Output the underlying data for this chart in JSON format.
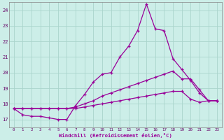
{
  "xlabel": "Windchill (Refroidissement éolien,°C)",
  "background_color": "#cceee8",
  "grid_color": "#aad4cc",
  "line_color": "#990099",
  "x_ticks": [
    0,
    1,
    2,
    3,
    4,
    5,
    6,
    7,
    8,
    9,
    10,
    11,
    12,
    13,
    14,
    15,
    16,
    17,
    18,
    19,
    20,
    21,
    22,
    23
  ],
  "ylim": [
    16.5,
    24.5
  ],
  "xlim": [
    -0.5,
    23.5
  ],
  "yticks": [
    17,
    18,
    19,
    20,
    21,
    22,
    23,
    24
  ],
  "line1_x": [
    0,
    1,
    2,
    3,
    4,
    5,
    6,
    7,
    8,
    9,
    10,
    11,
    12,
    13,
    14,
    15,
    16,
    17,
    18,
    19,
    20,
    21,
    22,
    23
  ],
  "line1_y": [
    17.7,
    17.3,
    17.2,
    17.2,
    17.1,
    17.0,
    17.0,
    17.9,
    18.6,
    19.4,
    19.9,
    20.0,
    21.0,
    21.7,
    22.7,
    24.4,
    22.8,
    22.7,
    20.9,
    20.2,
    19.5,
    18.7,
    18.2,
    18.2
  ],
  "line2_x": [
    0,
    1,
    2,
    3,
    4,
    5,
    6,
    7,
    8,
    9,
    10,
    11,
    12,
    13,
    14,
    15,
    16,
    17,
    18,
    19,
    20,
    21,
    22,
    23
  ],
  "line2_y": [
    17.7,
    17.7,
    17.7,
    17.7,
    17.7,
    17.7,
    17.7,
    17.8,
    18.0,
    18.2,
    18.5,
    18.7,
    18.9,
    19.1,
    19.3,
    19.5,
    19.7,
    19.9,
    20.1,
    19.6,
    19.6,
    18.9,
    18.2,
    18.2
  ],
  "line3_x": [
    0,
    1,
    2,
    3,
    4,
    5,
    6,
    7,
    8,
    9,
    10,
    11,
    12,
    13,
    14,
    15,
    16,
    17,
    18,
    19,
    20,
    21,
    22,
    23
  ],
  "line3_y": [
    17.7,
    17.7,
    17.7,
    17.7,
    17.7,
    17.7,
    17.7,
    17.7,
    17.8,
    17.9,
    18.0,
    18.1,
    18.2,
    18.3,
    18.4,
    18.5,
    18.6,
    18.7,
    18.8,
    18.8,
    18.3,
    18.1,
    18.2,
    18.2
  ]
}
